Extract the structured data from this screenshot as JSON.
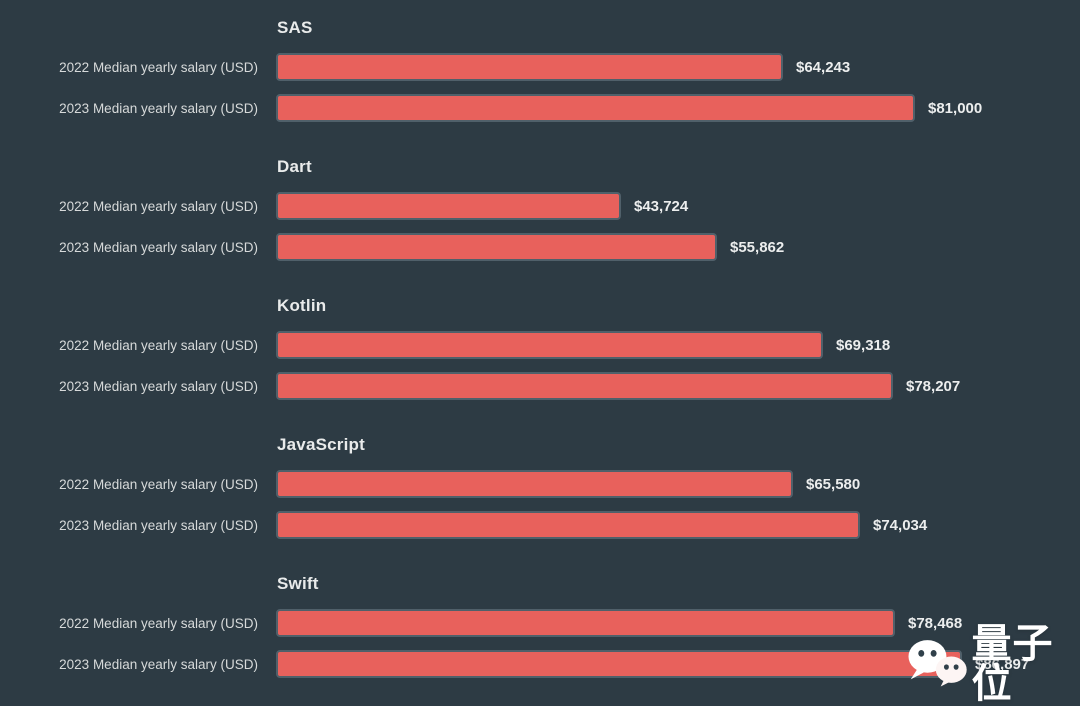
{
  "app": {
    "background_color": "#2d3b44",
    "bar_fill_color": "#e8615c",
    "bar_border_color": "#50606a",
    "title_text_color": "#e9ebeb",
    "label_text_color": "#d7dada",
    "value_text_color": "#eceeee"
  },
  "chart_data": {
    "type": "bar",
    "orientation": "horizontal",
    "title": "",
    "xlabel": "",
    "ylabel": "",
    "grid": false,
    "legend_position": "none",
    "row_labels": [
      "2022 Median yearly salary (USD)",
      "2023 Median yearly salary (USD)"
    ],
    "axis_max": 86897,
    "groups": [
      {
        "title": "SAS",
        "values": [
          64243,
          81000
        ],
        "value_labels": [
          "$64,243",
          "$81,000"
        ]
      },
      {
        "title": "Dart",
        "values": [
          43724,
          55862
        ],
        "value_labels": [
          "$43,724",
          "$55,862"
        ]
      },
      {
        "title": "Kotlin",
        "values": [
          69318,
          78207
        ],
        "value_labels": [
          "$69,318",
          "$78,207"
        ]
      },
      {
        "title": "JavaScript",
        "values": [
          65580,
          74034
        ],
        "value_labels": [
          "$65,580",
          "$74,034"
        ]
      },
      {
        "title": "Swift",
        "values": [
          78468,
          86897
        ],
        "value_labels": [
          "$78,468",
          "$86,897"
        ]
      }
    ]
  },
  "watermark": {
    "text": "量子位",
    "icon": "wechat-icon"
  }
}
